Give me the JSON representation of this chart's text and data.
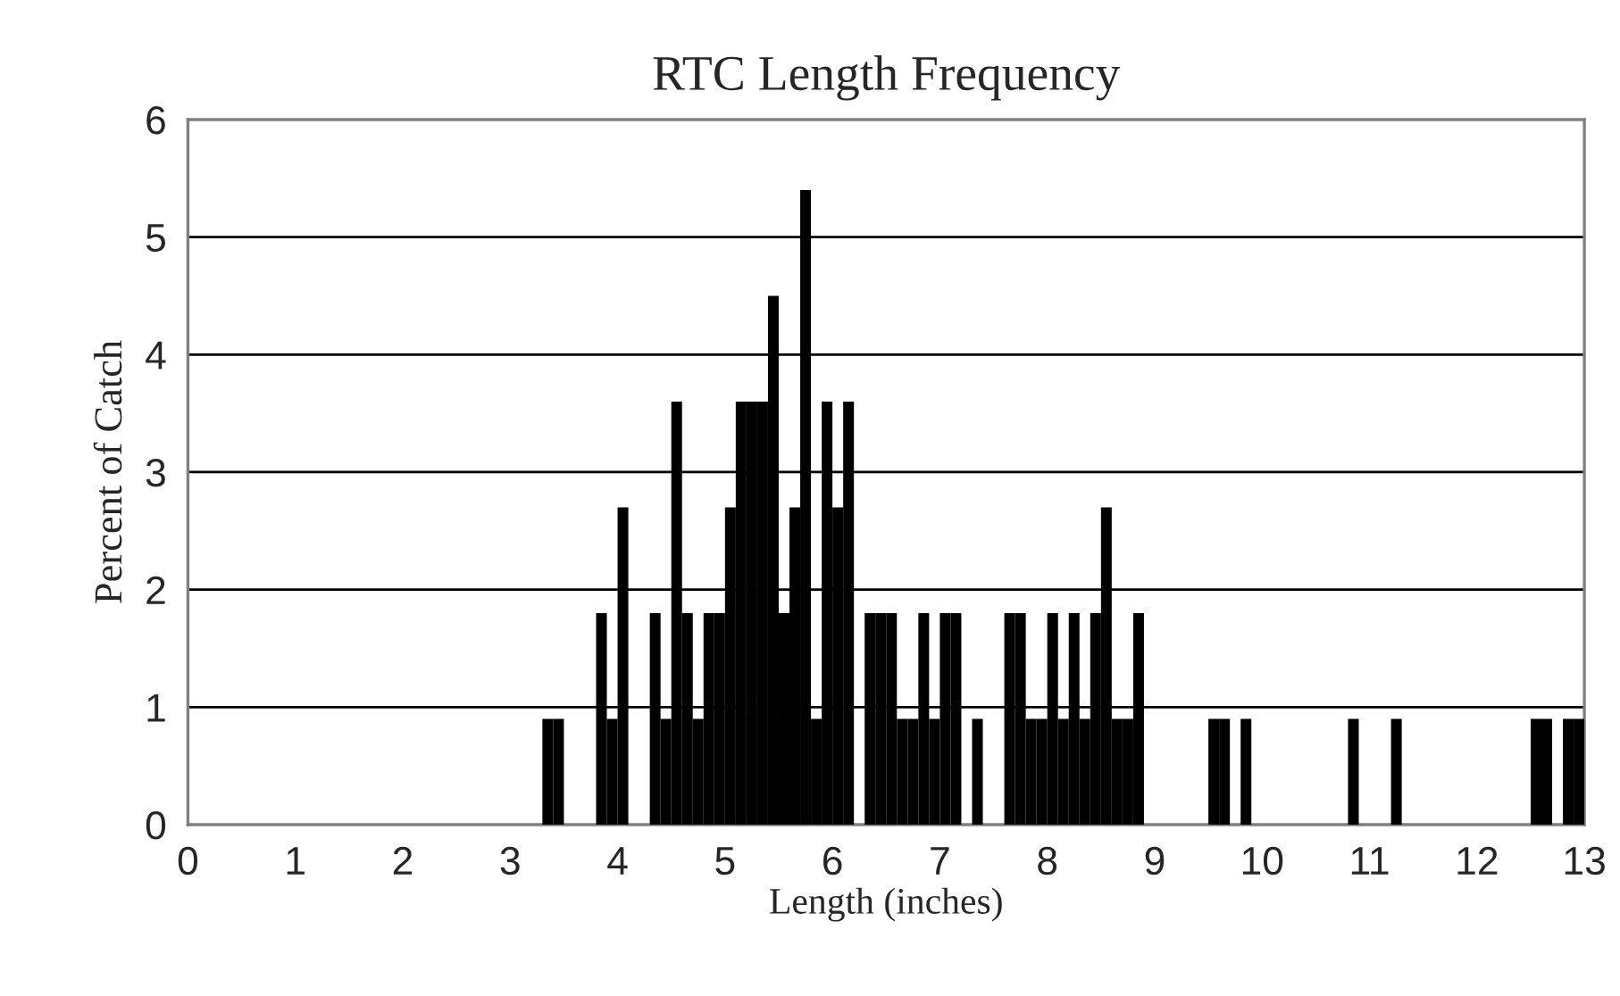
{
  "chart_data": {
    "type": "histogram",
    "title": "RTC Length Frequency",
    "xlabel": "Length (inches)",
    "ylabel": "Percent of Catch",
    "bins": [
      0,
      0.1,
      0.2,
      0.3,
      0.4,
      0.5,
      0.6,
      0.7,
      0.8,
      0.9,
      1,
      1.1,
      1.2,
      1.3,
      1.4,
      1.5,
      1.6,
      1.7,
      1.8,
      1.9,
      2,
      2.1,
      2.2,
      2.3,
      2.4,
      2.5,
      2.6,
      2.7,
      2.8,
      2.9,
      3,
      3.1,
      3.2,
      3.3,
      3.4,
      3.5,
      3.6,
      3.7,
      3.8,
      3.9,
      4,
      4.1,
      4.2,
      4.3,
      4.4,
      4.5,
      4.6,
      4.7,
      4.8,
      4.9,
      5,
      5.1,
      5.2,
      5.3,
      5.4,
      5.5,
      5.6,
      5.7,
      5.8,
      5.9,
      6,
      6.1,
      6.2,
      6.3,
      6.4,
      6.5,
      6.6,
      6.7,
      6.8,
      6.9,
      7,
      7.1,
      7.2,
      7.3,
      7.4,
      7.5,
      7.6,
      7.7,
      7.8,
      7.9,
      8,
      8.1,
      8.2,
      8.3,
      8.4,
      8.5,
      8.6,
      8.7,
      8.8,
      8.9,
      9,
      9.1,
      9.2,
      9.3,
      9.4,
      9.5,
      9.6,
      9.7,
      9.8,
      9.9,
      10,
      10.1,
      10.2,
      10.3,
      10.4,
      10.5,
      10.6,
      10.7,
      10.8,
      10.9,
      11,
      11.1,
      11.2,
      11.3,
      11.4,
      11.5,
      11.6,
      11.7,
      11.8,
      11.9,
      12,
      12.1,
      12.2,
      12.3,
      12.4,
      12.5,
      12.6,
      12.7,
      12.8,
      12.9,
      13
    ],
    "values": [
      0,
      0,
      0,
      0,
      0,
      0,
      0,
      0,
      0,
      0,
      0,
      0,
      0,
      0,
      0,
      0,
      0,
      0,
      0,
      0,
      0,
      0,
      0,
      0,
      0,
      0,
      0,
      0,
      0,
      0,
      0,
      0,
      0,
      0.9,
      0.9,
      0,
      0,
      0,
      1.8,
      0.9,
      2.7,
      0,
      0,
      1.8,
      0.9,
      3.6,
      1.8,
      0.9,
      1.8,
      1.8,
      2.7,
      3.6,
      3.6,
      3.6,
      4.5,
      1.8,
      2.7,
      5.4,
      0.9,
      3.6,
      2.7,
      3.6,
      0,
      1.8,
      1.8,
      1.8,
      0.9,
      0.9,
      1.8,
      0.9,
      1.8,
      1.8,
      0,
      0.9,
      0,
      0,
      1.8,
      1.8,
      0.9,
      0.9,
      1.8,
      0.9,
      1.8,
      0.9,
      1.8,
      2.7,
      0.9,
      0.9,
      1.8,
      0,
      0,
      0,
      0,
      0,
      0,
      0.9,
      0.9,
      0,
      0.9,
      0,
      0,
      0,
      0,
      0,
      0,
      0,
      0,
      0,
      0.9,
      0,
      0,
      0,
      0.9,
      0,
      0,
      0,
      0,
      0,
      0,
      0,
      0,
      0,
      0,
      0,
      0,
      0.9,
      0.9,
      0,
      0.9,
      0.9
    ],
    "color": "#000000",
    "xlim": [
      0,
      13
    ],
    "xticks": [
      0,
      1,
      2,
      3,
      4,
      5,
      6,
      7,
      8,
      9,
      10,
      11,
      12,
      13
    ],
    "ylim": [
      0,
      6
    ],
    "yticks": [
      0,
      1,
      2,
      3,
      4,
      5,
      6
    ],
    "grid": "y"
  }
}
